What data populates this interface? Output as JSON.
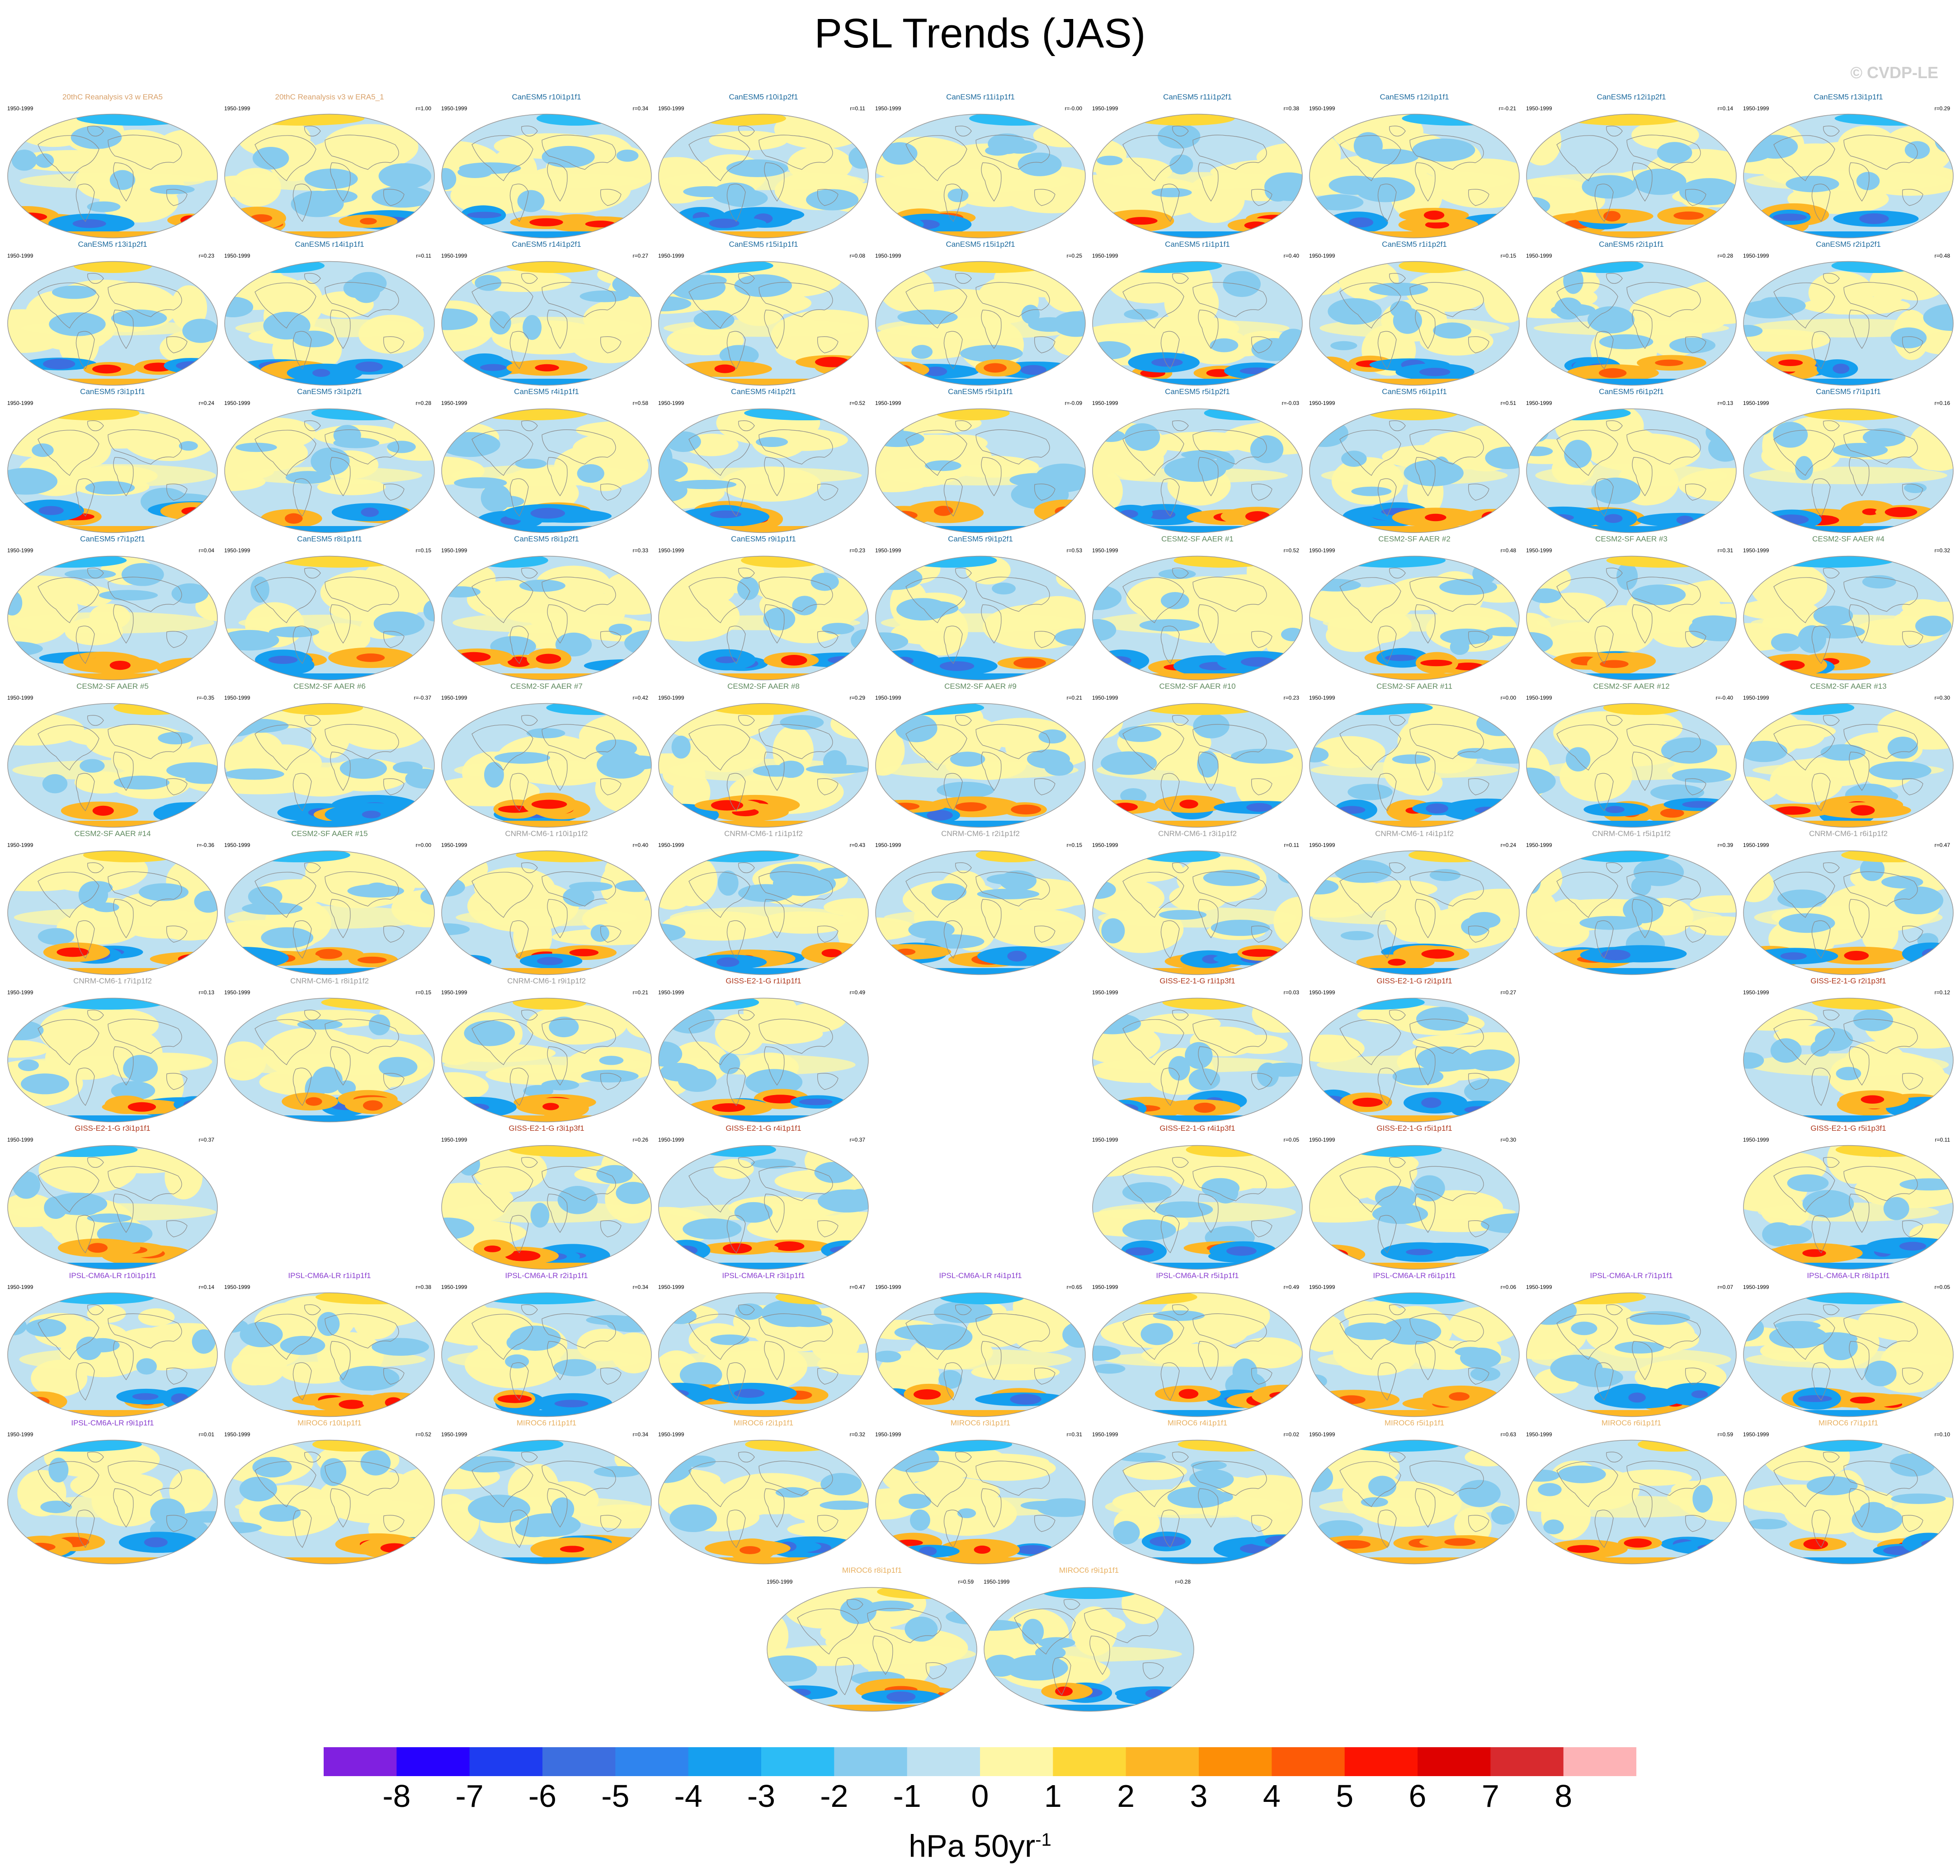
{
  "title": "PSL Trends (JAS)",
  "credit": "© CVDP-LE",
  "units": "hPa 50yr",
  "units_exponent": "-1",
  "colors": {
    "group_20thC": "#d9a16a",
    "group_CanESM5": "#1c6a9e",
    "group_CESM2": "#5f8a5f",
    "group_CNRM": "#9a9a9a",
    "group_GISS": "#b0391e",
    "group_IPSL": "#8a3fd0",
    "group_MIROC": "#e8b060",
    "continent_outline": "#8a8a8a"
  },
  "chart_data": {
    "type": "map-panels",
    "projection": "Robinson",
    "variable": "PSL",
    "season": "JAS",
    "period": "1950-1999",
    "colorbar": {
      "levels": [
        -8,
        -7,
        -6,
        -5,
        -4,
        -3,
        -2,
        -1,
        0,
        1,
        2,
        3,
        4,
        5,
        6,
        7,
        8
      ],
      "colors": [
        "#8020e0",
        "#2600ff",
        "#1e3cf0",
        "#3c6ee0",
        "#2f84ee",
        "#159fef",
        "#2cbcf5",
        "#86cbee",
        "#bee1f1",
        "#fef7a6",
        "#fdd837",
        "#fdb624",
        "#fd8e06",
        "#fd5a06",
        "#fd1300",
        "#de0100",
        "#d82a2e",
        "#fdb3b6"
      ]
    },
    "panels": [
      {
        "title": "20thC Reanalysis v3 w ERA5",
        "period": "1950-1999",
        "r": "",
        "group": "20thC",
        "row": 0,
        "col": 0
      },
      {
        "title": "20thC Reanalysis v3 w ERA5_1",
        "period": "1950-1999",
        "r": "r=1.00",
        "group": "20thC",
        "row": 0,
        "col": 1
      },
      {
        "title": "CanESM5 r10i1p1f1",
        "period": "1950-1999",
        "r": "r=0.34",
        "group": "CanESM5",
        "row": 0,
        "col": 2
      },
      {
        "title": "CanESM5 r10i1p2f1",
        "period": "1950-1999",
        "r": "r=0.11",
        "group": "CanESM5",
        "row": 0,
        "col": 3
      },
      {
        "title": "CanESM5 r11i1p1f1",
        "period": "1950-1999",
        "r": "r=-0.00",
        "group": "CanESM5",
        "row": 0,
        "col": 4
      },
      {
        "title": "CanESM5 r11i1p2f1",
        "period": "1950-1999",
        "r": "r=0.38",
        "group": "CanESM5",
        "row": 0,
        "col": 5
      },
      {
        "title": "CanESM5 r12i1p1f1",
        "period": "1950-1999",
        "r": "r=-0.21",
        "group": "CanESM5",
        "row": 0,
        "col": 6
      },
      {
        "title": "CanESM5 r12i1p2f1",
        "period": "1950-1999",
        "r": "r=0.14",
        "group": "CanESM5",
        "row": 0,
        "col": 7
      },
      {
        "title": "CanESM5 r13i1p1f1",
        "period": "1950-1999",
        "r": "r=0.29",
        "group": "CanESM5",
        "row": 0,
        "col": 8
      },
      {
        "title": "CanESM5 r13i1p2f1",
        "period": "1950-1999",
        "r": "r=0.23",
        "group": "CanESM5",
        "row": 1,
        "col": 0
      },
      {
        "title": "CanESM5 r14i1p1f1",
        "period": "1950-1999",
        "r": "r=0.11",
        "group": "CanESM5",
        "row": 1,
        "col": 1
      },
      {
        "title": "CanESM5 r14i1p2f1",
        "period": "1950-1999",
        "r": "r=0.27",
        "group": "CanESM5",
        "row": 1,
        "col": 2
      },
      {
        "title": "CanESM5 r15i1p1f1",
        "period": "1950-1999",
        "r": "r=0.08",
        "group": "CanESM5",
        "row": 1,
        "col": 3
      },
      {
        "title": "CanESM5 r15i1p2f1",
        "period": "1950-1999",
        "r": "r=0.25",
        "group": "CanESM5",
        "row": 1,
        "col": 4
      },
      {
        "title": "CanESM5 r1i1p1f1",
        "period": "1950-1999",
        "r": "r=0.40",
        "group": "CanESM5",
        "row": 1,
        "col": 5
      },
      {
        "title": "CanESM5 r1i1p2f1",
        "period": "1950-1999",
        "r": "r=0.15",
        "group": "CanESM5",
        "row": 1,
        "col": 6
      },
      {
        "title": "CanESM5 r2i1p1f1",
        "period": "1950-1999",
        "r": "r=0.28",
        "group": "CanESM5",
        "row": 1,
        "col": 7
      },
      {
        "title": "CanESM5 r2i1p2f1",
        "period": "1950-1999",
        "r": "r=0.48",
        "group": "CanESM5",
        "row": 1,
        "col": 8
      },
      {
        "title": "CanESM5 r3i1p1f1",
        "period": "1950-1999",
        "r": "r=0.24",
        "group": "CanESM5",
        "row": 2,
        "col": 0
      },
      {
        "title": "CanESM5 r3i1p2f1",
        "period": "1950-1999",
        "r": "r=0.28",
        "group": "CanESM5",
        "row": 2,
        "col": 1
      },
      {
        "title": "CanESM5 r4i1p1f1",
        "period": "1950-1999",
        "r": "r=0.58",
        "group": "CanESM5",
        "row": 2,
        "col": 2
      },
      {
        "title": "CanESM5 r4i1p2f1",
        "period": "1950-1999",
        "r": "r=0.52",
        "group": "CanESM5",
        "row": 2,
        "col": 3
      },
      {
        "title": "CanESM5 r5i1p1f1",
        "period": "1950-1999",
        "r": "r=-0.09",
        "group": "CanESM5",
        "row": 2,
        "col": 4
      },
      {
        "title": "CanESM5 r5i1p2f1",
        "period": "1950-1999",
        "r": "r=-0.03",
        "group": "CanESM5",
        "row": 2,
        "col": 5
      },
      {
        "title": "CanESM5 r6i1p1f1",
        "period": "1950-1999",
        "r": "r=0.51",
        "group": "CanESM5",
        "row": 2,
        "col": 6
      },
      {
        "title": "CanESM5 r6i1p2f1",
        "period": "1950-1999",
        "r": "r=0.13",
        "group": "CanESM5",
        "row": 2,
        "col": 7
      },
      {
        "title": "CanESM5 r7i1p1f1",
        "period": "1950-1999",
        "r": "r=0.16",
        "group": "CanESM5",
        "row": 2,
        "col": 8
      },
      {
        "title": "CanESM5 r7i1p2f1",
        "period": "1950-1999",
        "r": "r=0.04",
        "group": "CanESM5",
        "row": 3,
        "col": 0
      },
      {
        "title": "CanESM5 r8i1p1f1",
        "period": "1950-1999",
        "r": "r=0.15",
        "group": "CanESM5",
        "row": 3,
        "col": 1
      },
      {
        "title": "CanESM5 r8i1p2f1",
        "period": "1950-1999",
        "r": "r=0.33",
        "group": "CanESM5",
        "row": 3,
        "col": 2
      },
      {
        "title": "CanESM5 r9i1p1f1",
        "period": "1950-1999",
        "r": "r=0.23",
        "group": "CanESM5",
        "row": 3,
        "col": 3
      },
      {
        "title": "CanESM5 r9i1p2f1",
        "period": "1950-1999",
        "r": "r=0.53",
        "group": "CanESM5",
        "row": 3,
        "col": 4
      },
      {
        "title": "CESM2-SF AAER #1",
        "period": "1950-1999",
        "r": "r=0.52",
        "group": "CESM2",
        "row": 3,
        "col": 5
      },
      {
        "title": "CESM2-SF AAER #2",
        "period": "1950-1999",
        "r": "r=0.48",
        "group": "CESM2",
        "row": 3,
        "col": 6
      },
      {
        "title": "CESM2-SF AAER #3",
        "period": "1950-1999",
        "r": "r=0.31",
        "group": "CESM2",
        "row": 3,
        "col": 7
      },
      {
        "title": "CESM2-SF AAER #4",
        "period": "1950-1999",
        "r": "r=0.32",
        "group": "CESM2",
        "row": 3,
        "col": 8
      },
      {
        "title": "CESM2-SF AAER #5",
        "period": "1950-1999",
        "r": "r=-0.35",
        "group": "CESM2",
        "row": 4,
        "col": 0
      },
      {
        "title": "CESM2-SF AAER #6",
        "period": "1950-1999",
        "r": "r=-0.37",
        "group": "CESM2",
        "row": 4,
        "col": 1
      },
      {
        "title": "CESM2-SF AAER #7",
        "period": "1950-1999",
        "r": "r=0.42",
        "group": "CESM2",
        "row": 4,
        "col": 2
      },
      {
        "title": "CESM2-SF AAER #8",
        "period": "1950-1999",
        "r": "r=0.29",
        "group": "CESM2",
        "row": 4,
        "col": 3
      },
      {
        "title": "CESM2-SF AAER #9",
        "period": "1950-1999",
        "r": "r=0.21",
        "group": "CESM2",
        "row": 4,
        "col": 4
      },
      {
        "title": "CESM2-SF AAER #10",
        "period": "1950-1999",
        "r": "r=0.23",
        "group": "CESM2",
        "row": 4,
        "col": 5
      },
      {
        "title": "CESM2-SF AAER #11",
        "period": "1950-1999",
        "r": "r=0.00",
        "group": "CESM2",
        "row": 4,
        "col": 6
      },
      {
        "title": "CESM2-SF AAER #12",
        "period": "1950-1999",
        "r": "r=-0.40",
        "group": "CESM2",
        "row": 4,
        "col": 7
      },
      {
        "title": "CESM2-SF AAER #13",
        "period": "1950-1999",
        "r": "r=0.30",
        "group": "CESM2",
        "row": 4,
        "col": 8
      },
      {
        "title": "CESM2-SF AAER #14",
        "period": "1950-1999",
        "r": "r=-0.36",
        "group": "CESM2",
        "row": 5,
        "col": 0
      },
      {
        "title": "CESM2-SF AAER #15",
        "period": "1950-1999",
        "r": "r=0.00",
        "group": "CESM2",
        "row": 5,
        "col": 1
      },
      {
        "title": "CNRM-CM6-1 r10i1p1f2",
        "period": "1950-1999",
        "r": "r=0.40",
        "group": "CNRM",
        "row": 5,
        "col": 2
      },
      {
        "title": "CNRM-CM6-1 r1i1p1f2",
        "period": "1950-1999",
        "r": "r=0.43",
        "group": "CNRM",
        "row": 5,
        "col": 3
      },
      {
        "title": "CNRM-CM6-1 r2i1p1f2",
        "period": "1950-1999",
        "r": "r=0.15",
        "group": "CNRM",
        "row": 5,
        "col": 4
      },
      {
        "title": "CNRM-CM6-1 r3i1p1f2",
        "period": "1950-1999",
        "r": "r=0.11",
        "group": "CNRM",
        "row": 5,
        "col": 5
      },
      {
        "title": "CNRM-CM6-1 r4i1p1f2",
        "period": "1950-1999",
        "r": "r=0.24",
        "group": "CNRM",
        "row": 5,
        "col": 6
      },
      {
        "title": "CNRM-CM6-1 r5i1p1f2",
        "period": "1950-1999",
        "r": "r=0.39",
        "group": "CNRM",
        "row": 5,
        "col": 7
      },
      {
        "title": "CNRM-CM6-1 r6i1p1f2",
        "period": "1950-1999",
        "r": "r=0.47",
        "group": "CNRM",
        "row": 5,
        "col": 8
      },
      {
        "title": "CNRM-CM6-1 r7i1p1f2",
        "period": "1950-1999",
        "r": "r=0.13",
        "group": "CNRM",
        "row": 6,
        "col": 0
      },
      {
        "title": "CNRM-CM6-1 r8i1p1f2",
        "period": "1950-1999",
        "r": "r=0.15",
        "group": "CNRM",
        "row": 6,
        "col": 1
      },
      {
        "title": "CNRM-CM6-1 r9i1p1f2",
        "period": "1950-1999",
        "r": "r=0.21",
        "group": "CNRM",
        "row": 6,
        "col": 2
      },
      {
        "title": "GISS-E2-1-G r1i1p1f1",
        "period": "1950-1999",
        "r": "r=0.49",
        "group": "GISS",
        "row": 6,
        "col": 3
      },
      {
        "title": "GISS-E2-1-G r1i1p3f1",
        "period": "1950-1999",
        "r": "r=0.03",
        "group": "GISS",
        "row": 6,
        "col": 5
      },
      {
        "title": "GISS-E2-1-G r2i1p1f1",
        "period": "1950-1999",
        "r": "r=0.27",
        "group": "GISS",
        "row": 6,
        "col": 6
      },
      {
        "title": "GISS-E2-1-G r2i1p3f1",
        "period": "1950-1999",
        "r": "r=0.12",
        "group": "GISS",
        "row": 6,
        "col": 8
      },
      {
        "title": "GISS-E2-1-G r3i1p1f1",
        "period": "1950-1999",
        "r": "r=0.37",
        "group": "GISS",
        "row": 7,
        "col": 0
      },
      {
        "title": "GISS-E2-1-G r3i1p3f1",
        "period": "1950-1999",
        "r": "r=0.26",
        "group": "GISS",
        "row": 7,
        "col": 2
      },
      {
        "title": "GISS-E2-1-G r4i1p1f1",
        "period": "1950-1999",
        "r": "r=0.37",
        "group": "GISS",
        "row": 7,
        "col": 3
      },
      {
        "title": "GISS-E2-1-G r4i1p3f1",
        "period": "1950-1999",
        "r": "r=0.05",
        "group": "GISS",
        "row": 7,
        "col": 5
      },
      {
        "title": "GISS-E2-1-G r5i1p1f1",
        "period": "1950-1999",
        "r": "r=0.30",
        "group": "GISS",
        "row": 7,
        "col": 6
      },
      {
        "title": "GISS-E2-1-G r5i1p3f1",
        "period": "1950-1999",
        "r": "r=0.11",
        "group": "GISS",
        "row": 7,
        "col": 8
      },
      {
        "title": "IPSL-CM6A-LR r10i1p1f1",
        "period": "1950-1999",
        "r": "r=0.14",
        "group": "IPSL",
        "row": 8,
        "col": 0
      },
      {
        "title": "IPSL-CM6A-LR r1i1p1f1",
        "period": "1950-1999",
        "r": "r=0.38",
        "group": "IPSL",
        "row": 8,
        "col": 1
      },
      {
        "title": "IPSL-CM6A-LR r2i1p1f1",
        "period": "1950-1999",
        "r": "r=0.34",
        "group": "IPSL",
        "row": 8,
        "col": 2
      },
      {
        "title": "IPSL-CM6A-LR r3i1p1f1",
        "period": "1950-1999",
        "r": "r=0.47",
        "group": "IPSL",
        "row": 8,
        "col": 3
      },
      {
        "title": "IPSL-CM6A-LR r4i1p1f1",
        "period": "1950-1999",
        "r": "r=0.65",
        "group": "IPSL",
        "row": 8,
        "col": 4
      },
      {
        "title": "IPSL-CM6A-LR r5i1p1f1",
        "period": "1950-1999",
        "r": "r=0.49",
        "group": "IPSL",
        "row": 8,
        "col": 5
      },
      {
        "title": "IPSL-CM6A-LR r6i1p1f1",
        "period": "1950-1999",
        "r": "r=0.06",
        "group": "IPSL",
        "row": 8,
        "col": 6
      },
      {
        "title": "IPSL-CM6A-LR r7i1p1f1",
        "period": "1950-1999",
        "r": "r=0.07",
        "group": "IPSL",
        "row": 8,
        "col": 7
      },
      {
        "title": "IPSL-CM6A-LR r8i1p1f1",
        "period": "1950-1999",
        "r": "r=0.05",
        "group": "IPSL",
        "row": 8,
        "col": 8
      },
      {
        "title": "IPSL-CM6A-LR r9i1p1f1",
        "period": "1950-1999",
        "r": "r=0.01",
        "group": "IPSL",
        "row": 9,
        "col": 0
      },
      {
        "title": "MIROC6 r10i1p1f1",
        "period": "1950-1999",
        "r": "r=0.52",
        "group": "MIROC",
        "row": 9,
        "col": 1
      },
      {
        "title": "MIROC6 r1i1p1f1",
        "period": "1950-1999",
        "r": "r=0.34",
        "group": "MIROC",
        "row": 9,
        "col": 2
      },
      {
        "title": "MIROC6 r2i1p1f1",
        "period": "1950-1999",
        "r": "r=0.32",
        "group": "MIROC",
        "row": 9,
        "col": 3
      },
      {
        "title": "MIROC6 r3i1p1f1",
        "period": "1950-1999",
        "r": "r=0.31",
        "group": "MIROC",
        "row": 9,
        "col": 4
      },
      {
        "title": "MIROC6 r4i1p1f1",
        "period": "1950-1999",
        "r": "r=0.02",
        "group": "MIROC",
        "row": 9,
        "col": 5
      },
      {
        "title": "MIROC6 r5i1p1f1",
        "period": "1950-1999",
        "r": "r=0.63",
        "group": "MIROC",
        "row": 9,
        "col": 6
      },
      {
        "title": "MIROC6 r6i1p1f1",
        "period": "1950-1999",
        "r": "r=0.59",
        "group": "MIROC",
        "row": 9,
        "col": 7
      },
      {
        "title": "MIROC6 r7i1p1f1",
        "period": "1950-1999",
        "r": "r=0.10",
        "group": "MIROC",
        "row": 9,
        "col": 8
      },
      {
        "title": "MIROC6 r8i1p1f1",
        "period": "1950-1999",
        "r": "r=0.59",
        "group": "MIROC",
        "row": 10,
        "col": 3.5
      },
      {
        "title": "MIROC6 r9i1p1f1",
        "period": "1950-1999",
        "r": "r=0.28",
        "group": "MIROC",
        "row": 10,
        "col": 4.5
      }
    ]
  }
}
